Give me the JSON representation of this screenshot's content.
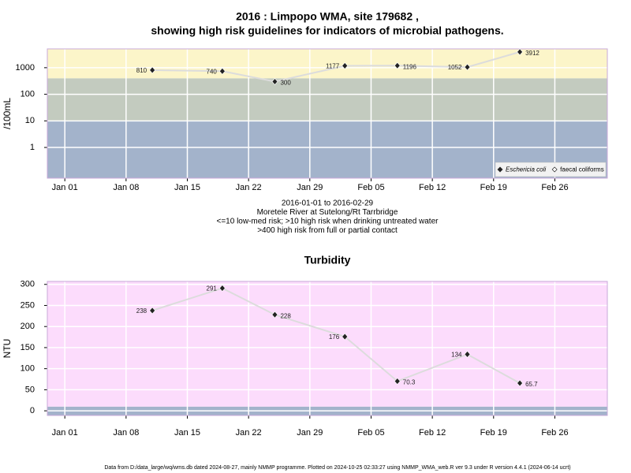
{
  "chart_data": [
    {
      "type": "line",
      "title": [
        "2016 : Limpopo WMA, site 179682 ,",
        "showing high risk guidelines for indicators of microbial pathogens."
      ],
      "notes": [
        "2016-01-01 to 2016-02-29",
        "Moretele River at Sutelong/Rt Tarrbridge",
        "<=10 low-med risk; >10 high risk when drinking untreated water",
        ">400 high risk from full or partial contact"
      ],
      "y_label": "/100mL",
      "x": [
        "2016-01-11",
        "2016-01-19",
        "2016-01-25",
        "2016-02-02",
        "2016-02-08",
        "2016-02-16",
        "2016-02-22"
      ],
      "series": [
        {
          "name": "Eschericia coli",
          "color": "#222222",
          "values": [
            810,
            740,
            300,
            1177,
            1196,
            1052,
            3912
          ]
        },
        {
          "name": "faecal coliforms",
          "color": "#222222",
          "values": [
            null,
            null,
            null,
            null,
            null,
            null,
            null
          ]
        }
      ],
      "xlim": [
        "2015-12-30",
        "2016-03-03"
      ],
      "xticks": [
        {
          "value": "2016-01-01",
          "label": "Jan 01"
        },
        {
          "value": "2016-01-08",
          "label": "Jan 08"
        },
        {
          "value": "2016-01-15",
          "label": "Jan 15"
        },
        {
          "value": "2016-01-22",
          "label": "Jan 22"
        },
        {
          "value": "2016-01-29",
          "label": "Jan 29"
        },
        {
          "value": "2016-02-05",
          "label": "Feb 05"
        },
        {
          "value": "2016-02-12",
          "label": "Feb 12"
        },
        {
          "value": "2016-02-19",
          "label": "Feb 19"
        },
        {
          "value": "2016-02-26",
          "label": "Feb 26"
        }
      ],
      "ylim": [
        0.07,
        5100
      ],
      "yticks": [
        1,
        10,
        100,
        1000
      ],
      "log_y": true,
      "grid": true,
      "bands": [
        {
          "to": 10,
          "color": "#a3b3cb"
        },
        {
          "from": 10,
          "to": 400,
          "color": "#c3cbbf"
        },
        {
          "from": 400,
          "color": "#fcf5c9"
        }
      ],
      "legend": "bottom right"
    },
    {
      "type": "line",
      "title": [
        "Turbidity"
      ],
      "y_label": "NTU",
      "x": [
        "2016-01-11",
        "2016-01-19",
        "2016-01-25",
        "2016-02-02",
        "2016-02-08",
        "2016-02-16",
        "2016-02-22"
      ],
      "series": [
        {
          "name": "Turbidity",
          "color": "#222222",
          "values": [
            238,
            291,
            228,
            176,
            70.3,
            134,
            65.7
          ]
        }
      ],
      "xlim": [
        "2015-12-30",
        "2016-03-03"
      ],
      "xticks": [
        {
          "value": "2016-01-01",
          "label": "Jan 01"
        },
        {
          "value": "2016-01-08",
          "label": "Jan 08"
        },
        {
          "value": "2016-01-15",
          "label": "Jan 15"
        },
        {
          "value": "2016-01-22",
          "label": "Jan 22"
        },
        {
          "value": "2016-01-29",
          "label": "Jan 29"
        },
        {
          "value": "2016-02-05",
          "label": "Feb 05"
        },
        {
          "value": "2016-02-12",
          "label": "Feb 12"
        },
        {
          "value": "2016-02-19",
          "label": "Feb 19"
        },
        {
          "value": "2016-02-26",
          "label": "Feb 26"
        }
      ],
      "ylim": [
        -11,
        307
      ],
      "yticks": [
        0,
        50,
        100,
        150,
        200,
        250,
        300
      ],
      "log_y": false,
      "grid": true,
      "bands": [
        {
          "to": 10,
          "color": "#a3b3cb"
        },
        {
          "from": 10,
          "color": "#fcdcfc"
        }
      ]
    }
  ],
  "footer": "Data from D:/data_large/wq/wms.db dated 2024-08-27, mainly NMMP programme. Plotted on 2024-10-25 02:33:27 using NMMP_WMA_web.R ver 9.3 under R version 4.4.1 (2024-06-14 ucrt)"
}
